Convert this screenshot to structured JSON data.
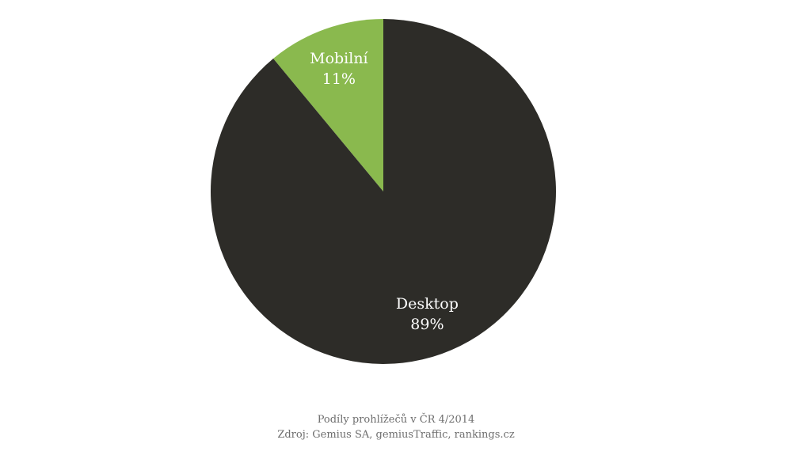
{
  "chart_data": {
    "type": "pie",
    "title": "Podíly prohlížečů v ČR 4/2014",
    "source": "Zdroj: Gemius SA, gemiusTraffic, rankings.cz",
    "slices": [
      {
        "label": "Mobilní",
        "value": 11,
        "value_label": "11%",
        "color": "#8ab94e",
        "label_color": "#ffffff"
      },
      {
        "label": "Desktop",
        "value": 89,
        "value_label": "89%",
        "color": "#2d2c28",
        "label_color": "#ffffff"
      }
    ],
    "start": "12 o'clock",
    "direction": "counterclockwise",
    "legend": "none"
  }
}
